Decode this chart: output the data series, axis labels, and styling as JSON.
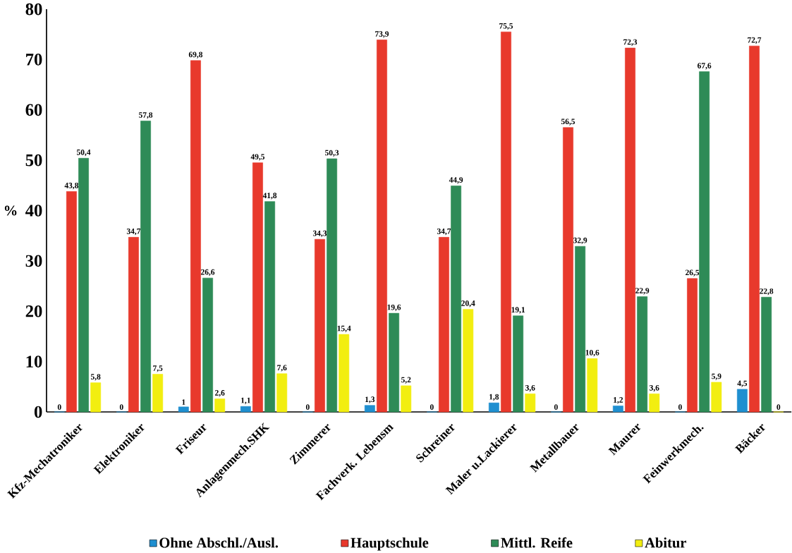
{
  "chart_data": {
    "type": "bar",
    "ylabel": "%",
    "categories": [
      "Kfz-Mechatroniker",
      "Elektroniker",
      "Friseur",
      "Anlagenmech.SHK",
      "Zimmerer",
      "Fachverk. Lebensm",
      "Schreiner",
      "Maler u.Lackierer",
      "Metallbauer",
      "Maurer",
      "Feinwerkmech.",
      "Bäcker"
    ],
    "series": [
      {
        "name": "Ohne Abschl./Ausl.",
        "color": "#1f8fd0",
        "values": [
          0,
          0,
          1,
          1.1,
          0,
          1.3,
          0,
          1.8,
          0,
          1.2,
          0,
          4.5
        ],
        "value_labels": [
          "0",
          "0",
          "1",
          "1,1",
          "0",
          "1,3",
          "0",
          "1,8",
          "0",
          "1,2",
          "0",
          "4,5"
        ]
      },
      {
        "name": "Hauptschule",
        "color": "#e8392c",
        "values": [
          43.8,
          34.7,
          69.8,
          49.5,
          34.3,
          73.9,
          34.7,
          75.5,
          56.5,
          72.3,
          26.5,
          72.7
        ],
        "value_labels": [
          "43,8",
          "34,7",
          "69,8",
          "49,5",
          "34,3",
          "73,9",
          "34,7",
          "75,5",
          "56,5",
          "72,3",
          "26,5",
          "72,7"
        ]
      },
      {
        "name": "Mittl. Reife",
        "color": "#2e8b57",
        "values": [
          50.4,
          57.8,
          26.6,
          41.8,
          50.3,
          19.6,
          44.9,
          19.1,
          32.9,
          22.9,
          67.6,
          22.8
        ],
        "value_labels": [
          "50,4",
          "57,8",
          "26,6",
          "41,8",
          "50,3",
          "19,6",
          "44,9",
          "19,1",
          "32,9",
          "22,9",
          "67,6",
          "22,8"
        ]
      },
      {
        "name": "Abitur",
        "color": "#f2ee10",
        "values": [
          5.8,
          7.5,
          2.6,
          7.6,
          15.4,
          5.2,
          20.4,
          3.6,
          10.6,
          3.6,
          5.9,
          0
        ],
        "value_labels": [
          "5,8",
          "7,5",
          "2,6",
          "7,6",
          "15,4",
          "5,2",
          "20,4",
          "3,6",
          "10,6",
          "3,6",
          "5,9",
          "0"
        ]
      }
    ],
    "ylim": [
      0,
      80
    ],
    "yticks": [
      0,
      10,
      20,
      30,
      40,
      50,
      60,
      70,
      80
    ],
    "legend": "bottom",
    "grid": false
  }
}
